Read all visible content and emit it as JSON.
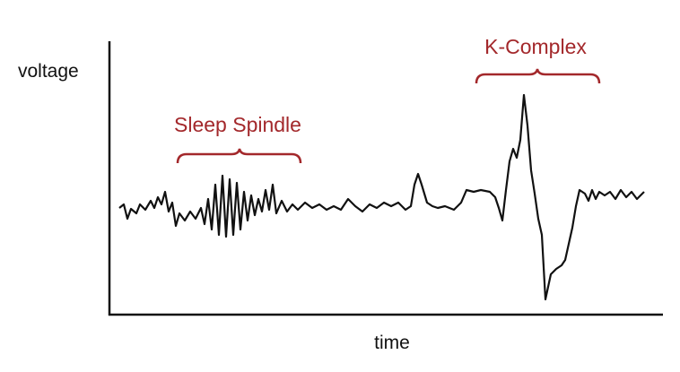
{
  "axes": {
    "y_label": "voltage",
    "x_label": "time"
  },
  "annotations": [
    {
      "label": "Sleep Spindle"
    },
    {
      "label": "K-Complex"
    }
  ]
}
